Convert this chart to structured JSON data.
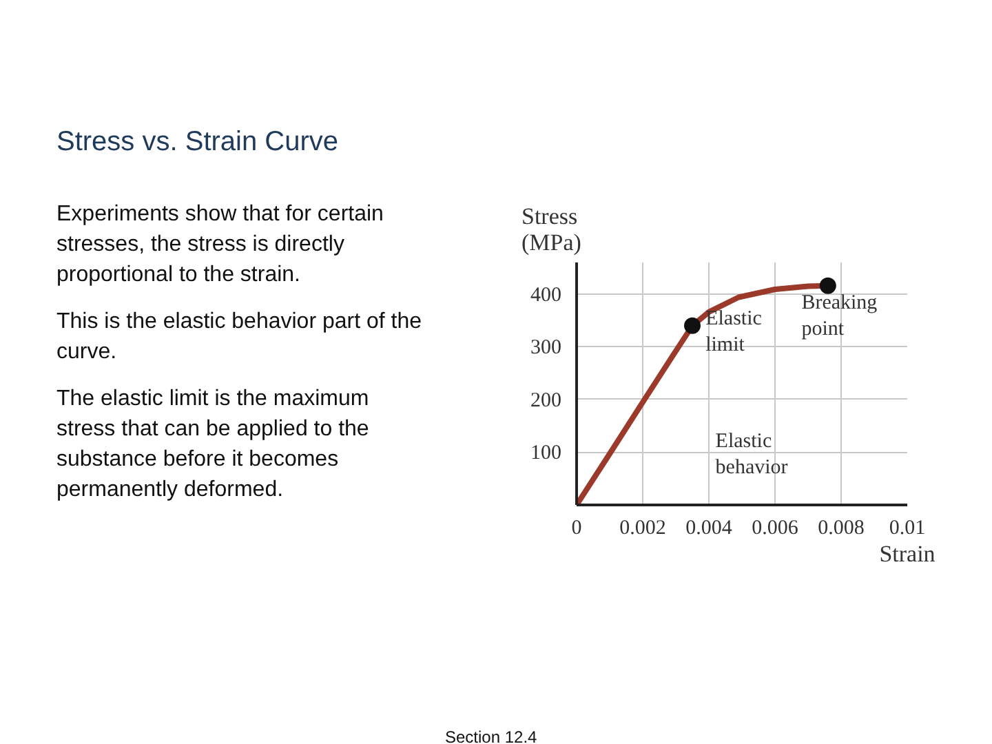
{
  "chart_data": {
    "type": "line",
    "title": "Stress vs. Strain Curve",
    "xlabel": "Strain",
    "ylabel": "Stress (MPa)",
    "xlim": [
      0,
      0.01
    ],
    "ylim": [
      0,
      460
    ],
    "xticks": [
      0,
      0.002,
      0.004,
      0.006,
      0.008,
      0.01
    ],
    "yticks": [
      100,
      200,
      300,
      400
    ],
    "grid": true,
    "line_style": "solid",
    "series": [
      {
        "color": "#9b3a2a",
        "x": [
          0,
          0.001,
          0.002,
          0.003,
          0.0035,
          0.004,
          0.0049,
          0.006,
          0.007,
          0.0076
        ],
        "values": [
          0,
          97,
          195,
          292,
          340,
          366,
          394,
          409,
          415,
          416
        ]
      },
      {
        "type": "scatter",
        "marker": "circle",
        "color": "#111111",
        "x": [
          0.0035,
          0.0076
        ],
        "values": [
          340,
          416
        ]
      }
    ],
    "annotations": [
      "Experiments show that for certain stresses, the stress is directly proportional to the strain.",
      "This is the elastic behavior part of the curve.",
      "The elastic limit is the maximum stress that can be applied to the substance before it becomes permanently deformed.",
      {
        "text": "Elastic limit",
        "x": 0.0035,
        "y": 340
      },
      {
        "text": "Breaking point",
        "x": 0.0076,
        "y": 416
      },
      "Elastic behavior",
      "Section 12.4"
    ]
  }
}
